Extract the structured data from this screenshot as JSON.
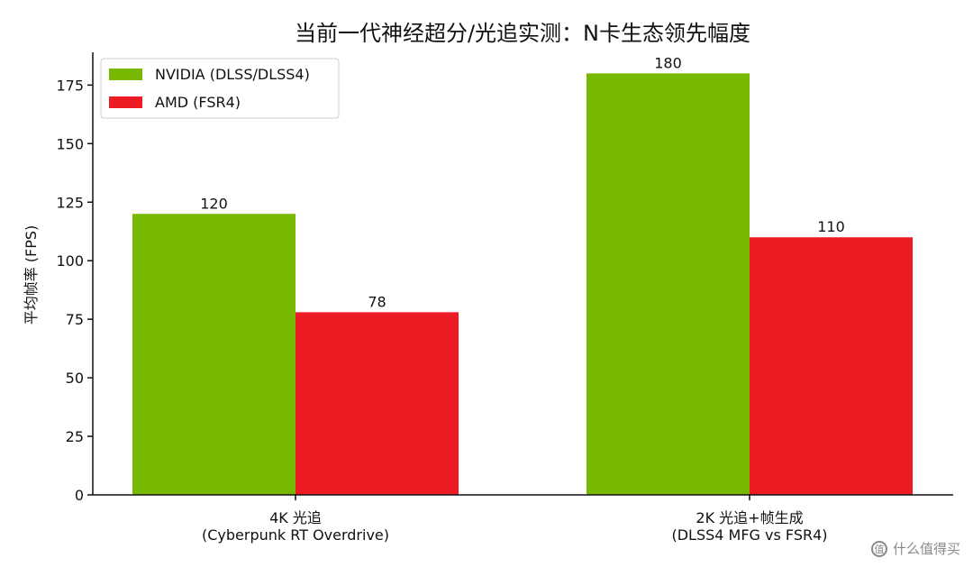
{
  "chart_data": {
    "type": "bar",
    "title": "当前一代神经超分/光追实测：N卡生态领先幅度",
    "ylabel": "平均帧率 (FPS)",
    "xlabel": "",
    "ylim": [
      0,
      189
    ],
    "yticks": [
      0,
      25,
      50,
      75,
      100,
      125,
      150,
      175
    ],
    "categories": [
      [
        "4K 光追",
        "(Cyberpunk RT Overdrive)"
      ],
      [
        "2K 光追+帧生成",
        "(DLSS4 MFG vs FSR4)"
      ]
    ],
    "series": [
      {
        "name": "NVIDIA (DLSS/DLSS4)",
        "color": "#76b900",
        "values": [
          120,
          180
        ]
      },
      {
        "name": "AMD (FSR4)",
        "color": "#ed1c24",
        "values": [
          78,
          110
        ]
      }
    ],
    "legend_position": "top-left",
    "grid": false
  },
  "watermark": {
    "icon": "zhide-icon",
    "text": "什么值得买"
  }
}
